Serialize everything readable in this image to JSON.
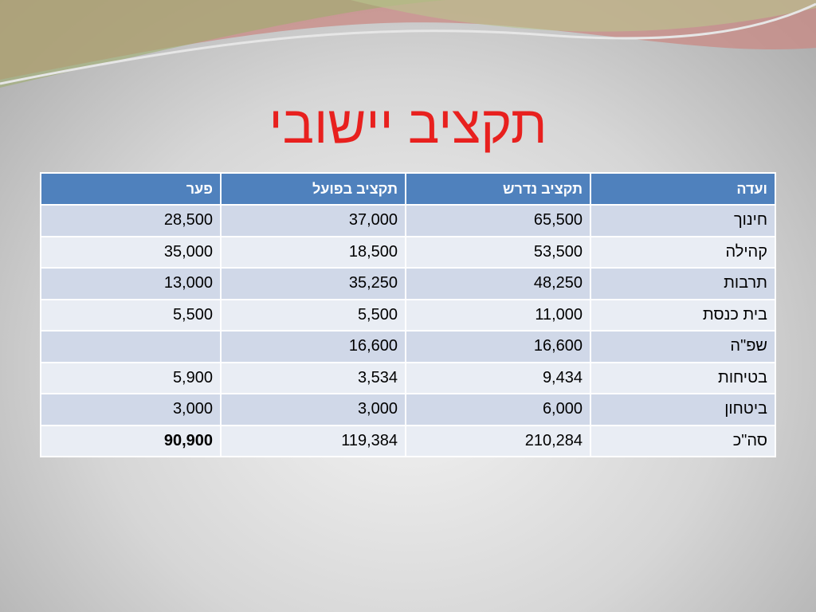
{
  "title": "תקציב יישובי",
  "table": {
    "header": [
      "ועדה",
      "תקציב נדרש",
      "תקציב בפועל",
      "פער"
    ],
    "rows": [
      [
        "חינוך",
        "65,500",
        "37,000",
        "28,500"
      ],
      [
        "קהילה",
        "53,500",
        "18,500",
        "35,000"
      ],
      [
        "תרבות",
        "48,250",
        "35,250",
        "13,000"
      ],
      [
        "בית כנסת",
        "11,000",
        "5,500",
        "5,500"
      ],
      [
        "שפ\"ה",
        "16,600",
        "16,600",
        null
      ],
      [
        "בטיחות",
        "9,434",
        "3,534",
        "5,900"
      ],
      [
        "ביטחון",
        "6,000",
        "3,000",
        "3,000"
      ],
      [
        "סה\"כ",
        "210,284",
        "119,384",
        "90,900"
      ]
    ]
  }
}
